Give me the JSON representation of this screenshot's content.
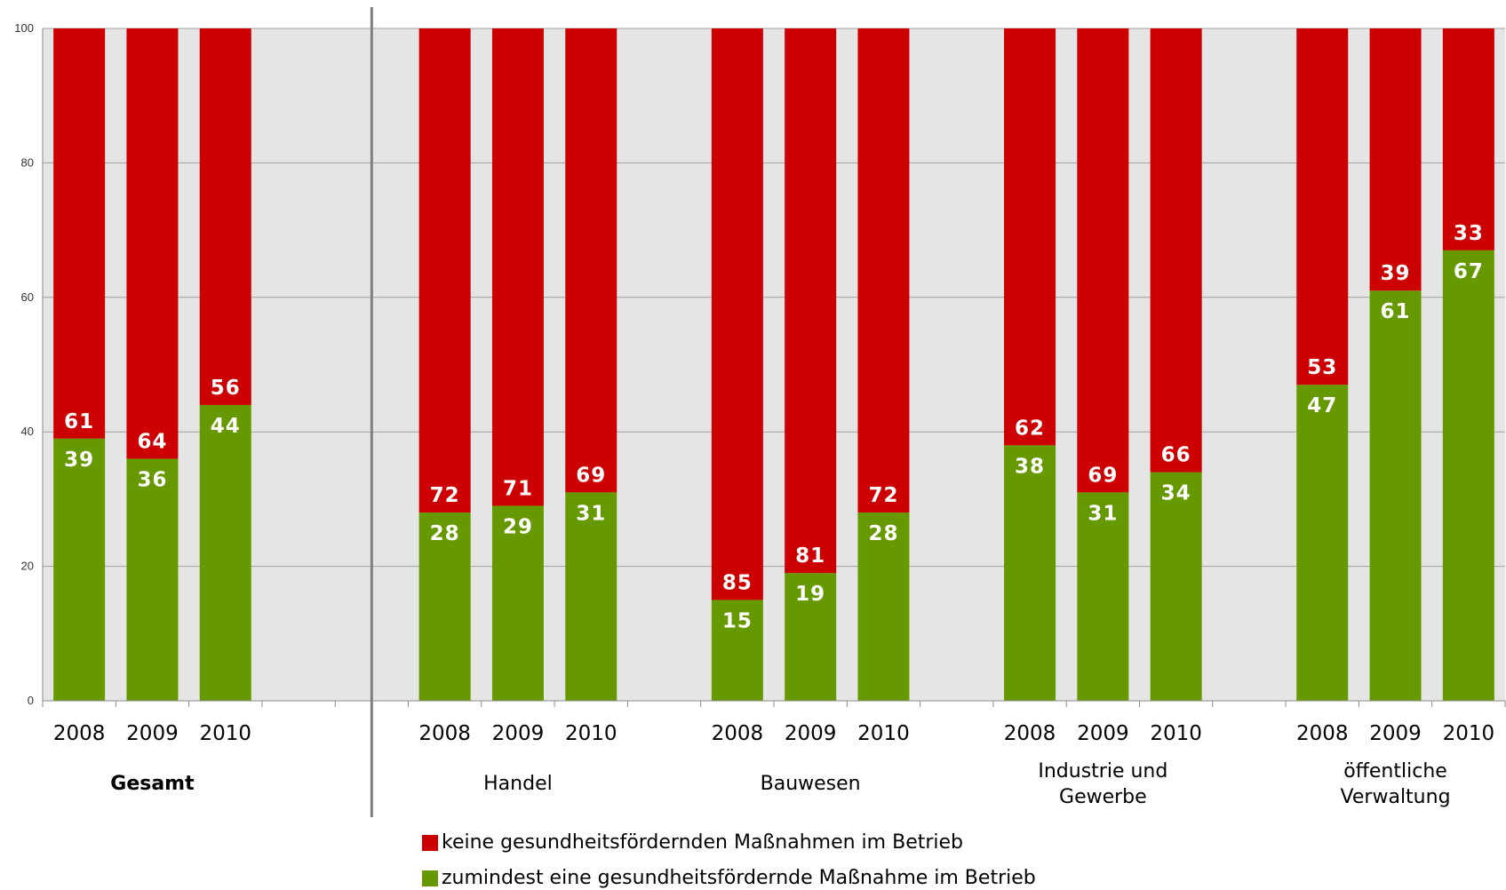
{
  "chart_data": {
    "type": "bar",
    "stacked": true,
    "ylim": [
      0,
      100
    ],
    "yticks": [
      0,
      20,
      40,
      60,
      80,
      100
    ],
    "grid": true,
    "legend_position": "bottom",
    "colors": {
      "green": "#669900",
      "red": "#cc0000",
      "plot_bg": "#e5e5e5"
    },
    "groups": [
      {
        "name": "Gesamt",
        "name_lines": [
          "Gesamt"
        ],
        "bold": true,
        "years": [
          "2008",
          "2009",
          "2010"
        ]
      },
      {
        "name": "Handel",
        "name_lines": [
          "Handel"
        ],
        "bold": false,
        "years": [
          "2008",
          "2009",
          "2010"
        ]
      },
      {
        "name": "Bauwesen",
        "name_lines": [
          "Bauwesen"
        ],
        "bold": false,
        "years": [
          "2008",
          "2009",
          "2010"
        ]
      },
      {
        "name": "Industrie und Gewerbe",
        "name_lines": [
          "Industrie und",
          "Gewerbe"
        ],
        "bold": false,
        "years": [
          "2008",
          "2009",
          "2010"
        ]
      },
      {
        "name": "öffentliche Verwaltung",
        "name_lines": [
          "öffentliche",
          "Verwaltung"
        ],
        "bold": false,
        "years": [
          "2008",
          "2009",
          "2010"
        ]
      }
    ],
    "series": [
      {
        "name": "zumindest eine gesundheitsfördernde Maßnahme im Betrieb",
        "color": "#669900",
        "values": [
          39,
          36,
          44,
          28,
          29,
          31,
          15,
          19,
          28,
          38,
          31,
          34,
          47,
          61,
          67
        ]
      },
      {
        "name": "keine gesundheitsfördernden Maßnahmen im Betrieb",
        "color": "#cc0000",
        "values": [
          61,
          64,
          56,
          72,
          71,
          69,
          85,
          81,
          72,
          62,
          69,
          66,
          53,
          39,
          33
        ]
      }
    ]
  }
}
